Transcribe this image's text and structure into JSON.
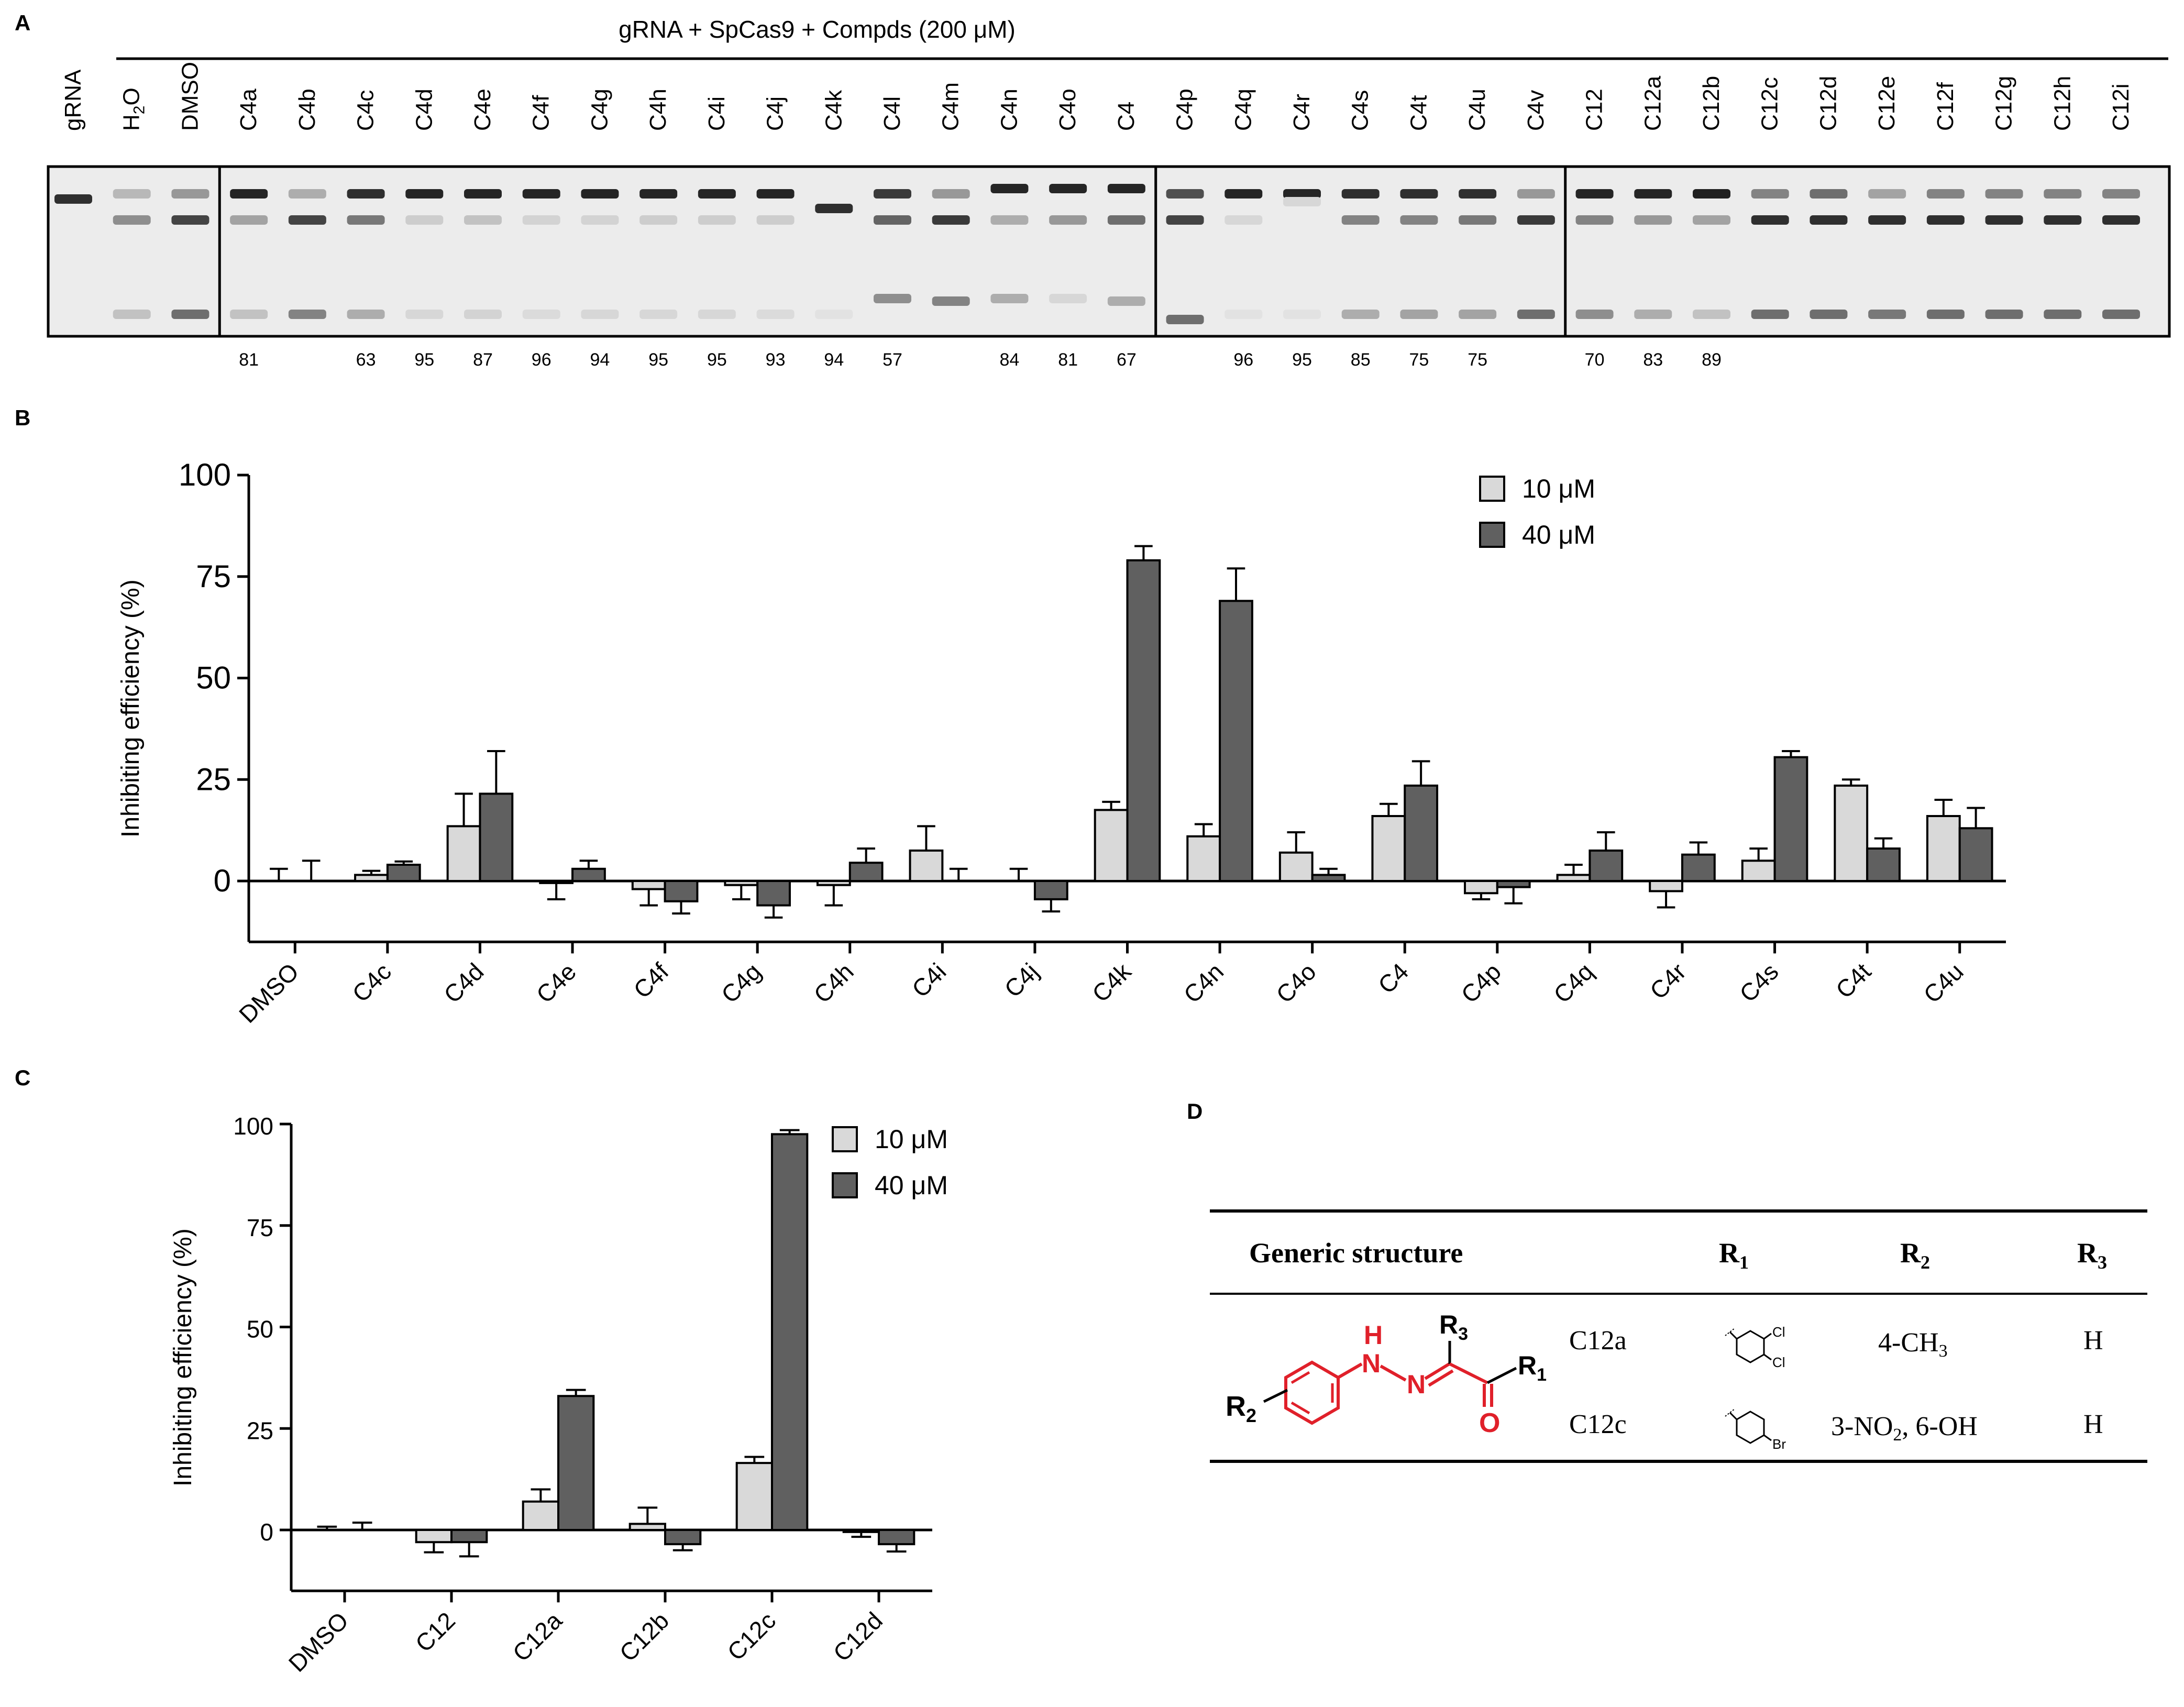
{
  "colors": {
    "light": "#d9d9d9",
    "dark": "#606060",
    "axis": "#000000",
    "red": "#e0202a"
  },
  "panelA": {
    "letter": "A",
    "title": "gRNA + SpCas9 + Compds (200 μM)",
    "lanes": [
      "gRNA",
      "H2O",
      "DMSO",
      "C4a",
      "C4b",
      "C4c",
      "C4d",
      "C4e",
      "C4f",
      "C4g",
      "C4h",
      "C4i",
      "C4j",
      "C4k",
      "C4l",
      "C4m",
      "C4n",
      "C4o",
      "C4",
      "C4p",
      "C4q",
      "C4r",
      "C4s",
      "C4t",
      "C4u",
      "C4v",
      "C12",
      "C12a",
      "C12b",
      "C12c",
      "C12d",
      "C12e",
      "C12f",
      "C12g",
      "C12h",
      "C12i"
    ],
    "h2o_sub": "2",
    "h2o_main": "H",
    "h2o_tail": "O",
    "percentages": [
      {
        "lane": "C4a",
        "value": "81"
      },
      {
        "lane": "C4c",
        "value": "63"
      },
      {
        "lane": "C4d",
        "value": "95"
      },
      {
        "lane": "C4e",
        "value": "87"
      },
      {
        "lane": "C4f",
        "value": "96"
      },
      {
        "lane": "C4g",
        "value": "94"
      },
      {
        "lane": "C4h",
        "value": "95"
      },
      {
        "lane": "C4i",
        "value": "95"
      },
      {
        "lane": "C4j",
        "value": "93"
      },
      {
        "lane": "C4k",
        "value": "94"
      },
      {
        "lane": "C4l",
        "value": "57"
      },
      {
        "lane": "C4n",
        "value": "84"
      },
      {
        "lane": "C4o",
        "value": "81"
      },
      {
        "lane": "C4",
        "value": "67"
      },
      {
        "lane": "C4q",
        "value": "96"
      },
      {
        "lane": "C4r",
        "value": "95"
      },
      {
        "lane": "C4s",
        "value": "85"
      },
      {
        "lane": "C4t",
        "value": "75"
      },
      {
        "lane": "C4u",
        "value": "75"
      },
      {
        "lane": "C12",
        "value": "70"
      },
      {
        "lane": "C12a",
        "value": "83"
      },
      {
        "lane": "C12b",
        "value": "89"
      }
    ]
  },
  "chart_data": [
    {
      "panel": "B",
      "type": "bar",
      "ylabel": "Inhibiting efficiency (%)",
      "ylim": [
        -15,
        100
      ],
      "yticks": [
        0,
        25,
        50,
        75,
        100
      ],
      "legend_position": "top-right",
      "categories": [
        "DMSO",
        "C4c",
        "C4d",
        "C4e",
        "C4f",
        "C4g",
        "C4h",
        "C4i",
        "C4j",
        "C4k",
        "C4n",
        "C4o",
        "C4",
        "C4p",
        "C4q",
        "C4r",
        "C4s",
        "C4t",
        "C4u"
      ],
      "series": [
        {
          "name": "10 μM",
          "values": [
            0,
            1.5,
            13.5,
            -0.5,
            -2,
            -1,
            -1,
            7.5,
            0,
            17.5,
            11,
            7,
            16,
            -3,
            1.5,
            -2.5,
            5,
            23.5,
            16
          ],
          "errors": [
            3,
            1,
            8,
            4,
            4,
            3.5,
            5,
            6,
            3,
            2,
            3,
            5,
            3,
            1.5,
            2.5,
            4,
            3,
            1.5,
            4
          ]
        },
        {
          "name": "40 μM",
          "values": [
            0,
            4,
            21.5,
            3,
            -5,
            -6,
            4.5,
            0,
            -4.5,
            79,
            69,
            1.5,
            23.5,
            -1.5,
            7.5,
            6.5,
            30.5,
            8,
            13
          ],
          "errors": [
            5,
            0.8,
            10.5,
            2,
            3,
            3,
            3.5,
            3,
            3,
            3.5,
            8,
            1.5,
            6,
            4,
            4.5,
            3,
            1.5,
            2.5,
            5
          ]
        }
      ]
    },
    {
      "panel": "C",
      "type": "bar",
      "ylabel": "Inhibiting efficiency (%)",
      "ylim": [
        -15,
        100
      ],
      "yticks": [
        0,
        25,
        50,
        75,
        100
      ],
      "legend_position": "top-right",
      "categories": [
        "DMSO",
        "C12",
        "C12a",
        "C12b",
        "C12c",
        "C12d"
      ],
      "series": [
        {
          "name": "10 μM",
          "values": [
            0,
            -3,
            7,
            1.5,
            16.5,
            -0.5
          ],
          "errors": [
            0.8,
            2.5,
            3,
            4,
            1.5,
            1.2
          ]
        },
        {
          "name": "40 μM",
          "values": [
            0,
            -3,
            33,
            -3.5,
            97.5,
            -3.5
          ],
          "errors": [
            1.8,
            3.5,
            1.5,
            1.5,
            1,
            1.8
          ]
        }
      ]
    }
  ],
  "panelB": {
    "letter": "B"
  },
  "panelC": {
    "letter": "C"
  },
  "panelD": {
    "letter": "D",
    "headers": {
      "generic": "Generic structure",
      "r1": "R",
      "r1sub": "1",
      "r2": "R",
      "r2sub": "2",
      "r3": "R",
      "r3sub": "3"
    },
    "structure_labels": {
      "nh": "H",
      "n1": "N",
      "n2": "N",
      "r3": "R",
      "r3sub": "3",
      "r1": "R",
      "r1sub": "1",
      "o": "O",
      "r2": "R",
      "r2sub": "2"
    },
    "rows": [
      {
        "compound": "C12a",
        "r1_subst_a": "Cl",
        "r1_subst_b": "Cl",
        "r2_main": "4-CH",
        "r2_sub": "3",
        "r2_tail": "",
        "r3": "H"
      },
      {
        "compound": "C12c",
        "r1_subst_a": "Br",
        "r1_subst_b": "",
        "r2_main": "3-NO",
        "r2_sub": "2",
        "r2_tail": ", 6-OH",
        "r3": "H"
      }
    ]
  }
}
